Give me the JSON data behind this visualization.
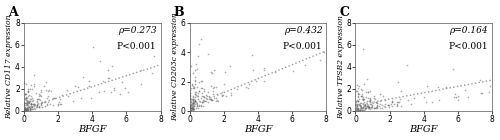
{
  "panels": [
    {
      "label": "A",
      "xlabel": "BFGF",
      "ylabel": "Relative CD117 expression",
      "rho": "ρ=0.273",
      "pval": "P<0.001",
      "xlim": [
        0,
        8
      ],
      "ylim": [
        0,
        8
      ],
      "xticks": [
        0,
        2,
        4,
        6,
        8
      ],
      "yticks": [
        0,
        2,
        4,
        6,
        8
      ],
      "trend_x": [
        0,
        8
      ],
      "trend_y": [
        0.2,
        4.2
      ],
      "seed": 42,
      "n_dense": 160,
      "n_sparse": 40,
      "x_scale": 0.6,
      "y_scale": 0.7,
      "rho_val": 0.273
    },
    {
      "label": "B",
      "xlabel": "BFGF",
      "ylabel": "Relative CD203c expression",
      "rho": "ρ=0.432",
      "pval": "P<0.001",
      "xlim": [
        0,
        8
      ],
      "ylim": [
        0,
        6
      ],
      "xticks": [
        0,
        2,
        4,
        6,
        8
      ],
      "yticks": [
        0,
        2,
        4,
        6
      ],
      "trend_x": [
        0,
        8
      ],
      "trend_y": [
        0.3,
        4.1
      ],
      "seed": 77,
      "n_dense": 155,
      "n_sparse": 35,
      "x_scale": 0.55,
      "y_scale": 0.75,
      "rho_val": 0.432
    },
    {
      "label": "C",
      "xlabel": "BFGF",
      "ylabel": "Relative TPSB2 expression",
      "rho": "ρ=0.164",
      "pval": "P<0.001",
      "xlim": [
        0,
        8
      ],
      "ylim": [
        0,
        8
      ],
      "xticks": [
        0,
        2,
        4,
        6,
        8
      ],
      "yticks": [
        0,
        2,
        4,
        6,
        8
      ],
      "trend_x": [
        0,
        8
      ],
      "trend_y": [
        0.5,
        2.8
      ],
      "seed": 999,
      "n_dense": 160,
      "n_sparse": 40,
      "x_scale": 0.7,
      "y_scale": 0.6,
      "rho_val": 0.164
    }
  ],
  "marker": "+",
  "marker_size": 4,
  "marker_color": "#666666",
  "marker_alpha": 0.55,
  "line_color": "#999999",
  "line_style": ":",
  "line_width": 1.0,
  "bg_color": "#ffffff",
  "panel_label_fontsize": 9,
  "xlabel_fontsize": 7,
  "ylabel_fontsize": 5.5,
  "tick_fontsize": 5.5,
  "annot_fontsize": 6.5
}
